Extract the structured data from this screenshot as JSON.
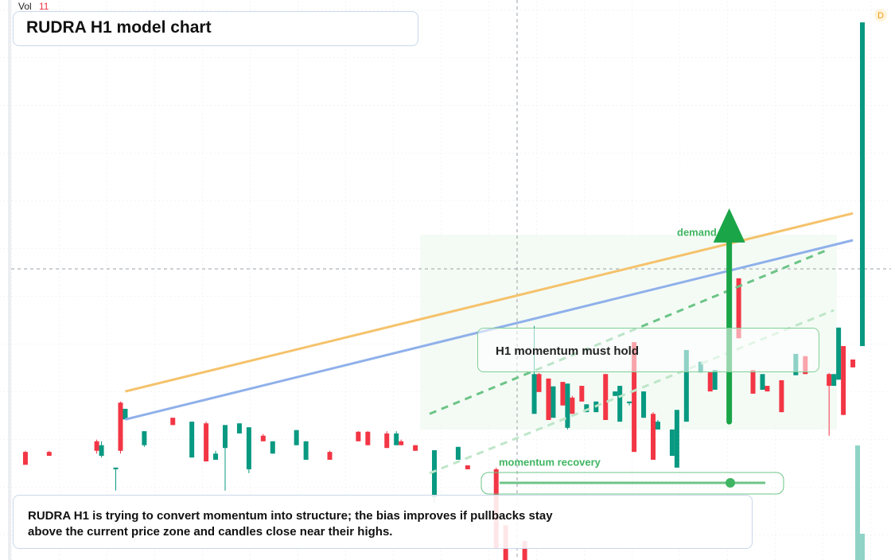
{
  "chart_data": {
    "type": "candlestick",
    "title": "RUDRA H1 model chart",
    "volume_label": "Vol",
    "volume_value_label": "11",
    "badge": "D",
    "up_color": "#089981",
    "down_color": "#f23645",
    "xlim": [
      0,
      180
    ],
    "ylim": [
      0,
      100
    ],
    "candles": [
      [
        3,
        19.3,
        19.5,
        17.0,
        17.0
      ],
      [
        8,
        19.3,
        19.5,
        18.6,
        18.6
      ],
      [
        18,
        21.2,
        21.5,
        19.0,
        19.5
      ],
      [
        19,
        18.6,
        21.2,
        18.3,
        20.5
      ],
      [
        22,
        16.2,
        16.5,
        12.4,
        16.5
      ],
      [
        23,
        28.1,
        28.3,
        19.0,
        19.5
      ],
      [
        24,
        25.1,
        27.0,
        25.1,
        27.0
      ],
      [
        28,
        20.5,
        23.0,
        20.2,
        23.0
      ],
      [
        34,
        25.4,
        25.4,
        24.1,
        24.1
      ],
      [
        38,
        18.3,
        24.7,
        18.3,
        24.7
      ],
      [
        41,
        24.4,
        24.7,
        17.6,
        17.6
      ],
      [
        43,
        17.9,
        19.5,
        17.9,
        19.0
      ],
      [
        45,
        20.0,
        24.1,
        12.4,
        24.1
      ],
      [
        48,
        22.6,
        24.4,
        22.6,
        24.4
      ],
      [
        50,
        16.2,
        23.7,
        15.5,
        23.7
      ],
      [
        53,
        22.2,
        22.5,
        21.2,
        21.2
      ],
      [
        55,
        19.0,
        21.2,
        19.0,
        21.2
      ],
      [
        60,
        20.5,
        23.2,
        20.5,
        23.2
      ],
      [
        62,
        17.9,
        21.2,
        17.9,
        21.2
      ],
      [
        67,
        19.3,
        19.5,
        17.9,
        17.9
      ],
      [
        73,
        22.9,
        23.0,
        21.2,
        21.2
      ],
      [
        75,
        22.9,
        23.0,
        20.5,
        20.5
      ],
      [
        79,
        22.6,
        23.0,
        20.0,
        20.0
      ],
      [
        81,
        20.5,
        23.0,
        20.5,
        22.6
      ],
      [
        82,
        21.2,
        21.5,
        20.5,
        20.5
      ],
      [
        85,
        20.5,
        20.5,
        19.5,
        19.5
      ],
      [
        89,
        11.2,
        19.6,
        10.2,
        19.6
      ],
      [
        94,
        17.9,
        20.2,
        17.9,
        20.2
      ],
      [
        96,
        16.9,
        16.9,
        16.2,
        16.2
      ],
      [
        102,
        16.2,
        16.5,
        2.0,
        2.0
      ],
      [
        104,
        6.2,
        6.2,
        0,
        0
      ],
      [
        108,
        3.4,
        3.4,
        0,
        0
      ],
      [
        110,
        26.1,
        41.8,
        26.1,
        33.2
      ],
      [
        111,
        33.2,
        33.4,
        30.0,
        30.0
      ],
      [
        113,
        32.4,
        32.4,
        25.0,
        25.0
      ],
      [
        114,
        25.4,
        31.0,
        25.4,
        31.0
      ],
      [
        116,
        31.8,
        31.8,
        27.6,
        27.6
      ],
      [
        117,
        23.6,
        31.5,
        23.3,
        31.5
      ],
      [
        118,
        29.0,
        29.3,
        26.1,
        26.1
      ],
      [
        120,
        31.1,
        31.1,
        28.3,
        28.3
      ],
      [
        121,
        26.4,
        27.8,
        26.4,
        27.8
      ],
      [
        123,
        26.4,
        28.3,
        26.4,
        28.3
      ],
      [
        125,
        33.2,
        33.2,
        25.0,
        25.0
      ],
      [
        127,
        29.3,
        30.1,
        29.3,
        30.1
      ],
      [
        128,
        24.7,
        31.1,
        24.7,
        31.1
      ],
      [
        130,
        28.0,
        28.3,
        27.6,
        28.3
      ],
      [
        131,
        38.9,
        38.9,
        19.3,
        19.3
      ],
      [
        133,
        25.4,
        30.1,
        25.4,
        30.1
      ],
      [
        135,
        26.1,
        26.4,
        17.9,
        17.9
      ],
      [
        136,
        23.3,
        25.0,
        23.3,
        24.7
      ],
      [
        139,
        18.6,
        23.3,
        18.6,
        23.3
      ],
      [
        140,
        16.5,
        26.8,
        16.5,
        26.8
      ],
      [
        142,
        24.7,
        37.5,
        24.7,
        37.5
      ],
      [
        145,
        33.5,
        35.4,
        33.5,
        35.4
      ],
      [
        147,
        33.5,
        33.5,
        30.1,
        30.1
      ],
      [
        148,
        30.4,
        33.9,
        30.4,
        33.9
      ],
      [
        153,
        50.3,
        50.3,
        39.6,
        39.6
      ],
      [
        156,
        33.9,
        33.9,
        29.7,
        29.7
      ],
      [
        158,
        30.4,
        33.2,
        30.4,
        33.2
      ],
      [
        159,
        31.1,
        31.1,
        30.1,
        30.1
      ],
      [
        162,
        32.1,
        32.1,
        26.4,
        26.4
      ],
      [
        165,
        33.0,
        36.8,
        33.0,
        36.8
      ],
      [
        167,
        36.4,
        36.4,
        33.2,
        33.2
      ],
      [
        172,
        33.2,
        33.4,
        22.2,
        31.1
      ],
      [
        173,
        31.1,
        33.2,
        31.1,
        33.2
      ],
      [
        174,
        32.2,
        41.5,
        32.2,
        41.5
      ],
      [
        175,
        38.2,
        38.2,
        25.9,
        25.9
      ],
      [
        177,
        35.8,
        35.8,
        34.4,
        34.4
      ],
      [
        179,
        38.2,
        96.0,
        38.2,
        96.0
      ]
    ],
    "volume": {
      "x": [
        178,
        179
      ],
      "values": [
        48,
        11
      ],
      "color": "#8fd3c7",
      "vlim": [
        0,
        100
      ]
    },
    "lines": [
      {
        "color": "#f5c26b",
        "dashed": false,
        "x": [
          24,
          177
        ],
        "y": [
          30.1,
          61.9
        ]
      },
      {
        "color": "#8fb0ea",
        "dashed": false,
        "x": [
          24,
          177
        ],
        "y": [
          25.1,
          57.1
        ]
      },
      {
        "color": "#6cc487",
        "dashed": true,
        "x": [
          88,
          172
        ],
        "y": [
          26.1,
          55.5
        ]
      },
      {
        "color": "#bfe6c9",
        "dashed": true,
        "x": [
          88,
          173
        ],
        "y": [
          15.5,
          44.6
        ]
      }
    ],
    "arrow": {
      "color": "#1aa548",
      "x": 151,
      "y": [
        24.7,
        62.8
      ]
    },
    "annotations": {
      "demand": "demand side",
      "hold": "H1 momentum must hold",
      "recovery": "momentum recovery"
    },
    "note": "RUDRA H1 is trying to convert momentum into structure; the bias improves if pullbacks stay above the current price zone and candles close near their highs."
  }
}
